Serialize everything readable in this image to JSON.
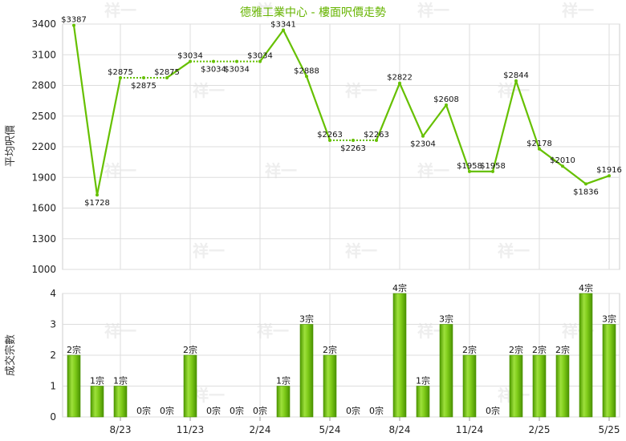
{
  "chart_data": [
    {
      "type": "line",
      "title": "德雅工業中心 - 樓面呎價走勢",
      "ylabel": "平均呎價",
      "ylim": [
        1000,
        3400
      ],
      "yticks": [
        1000,
        1300,
        1600,
        1900,
        2200,
        2500,
        2800,
        3100,
        3400
      ],
      "value_prefix": "$",
      "values": [
        3387,
        1728,
        2875,
        2875,
        2875,
        3034,
        3034,
        3034,
        3034,
        3341,
        2888,
        2263,
        2263,
        2263,
        2822,
        2304,
        2608,
        1958,
        1958,
        2844,
        2178,
        2010,
        1836,
        1916
      ],
      "interpolated": [
        false,
        false,
        false,
        true,
        false,
        false,
        true,
        true,
        false,
        false,
        false,
        false,
        true,
        false,
        false,
        false,
        false,
        false,
        false,
        false,
        false,
        false,
        false,
        false
      ],
      "grid": true,
      "color": "#66c000"
    },
    {
      "type": "bar",
      "ylabel": "成交宗數",
      "ylim": [
        0,
        4
      ],
      "yticks": [
        0,
        1,
        2,
        3,
        4
      ],
      "value_suffix": "宗",
      "values": [
        2,
        1,
        1,
        0,
        0,
        2,
        0,
        0,
        0,
        1,
        3,
        2,
        0,
        0,
        4,
        1,
        3,
        2,
        0,
        2,
        2,
        2,
        4,
        3
      ],
      "x_ticks": [
        {
          "index": 2,
          "label": "8/23"
        },
        {
          "index": 5,
          "label": "11/23"
        },
        {
          "index": 8,
          "label": "2/24"
        },
        {
          "index": 11,
          "label": "5/24"
        },
        {
          "index": 14,
          "label": "8/24"
        },
        {
          "index": 17,
          "label": "11/24"
        },
        {
          "index": 20,
          "label": "2/25"
        },
        {
          "index": 23,
          "label": "5/25"
        }
      ],
      "grid": true,
      "color": "#66c000"
    }
  ],
  "watermark": "祥一"
}
